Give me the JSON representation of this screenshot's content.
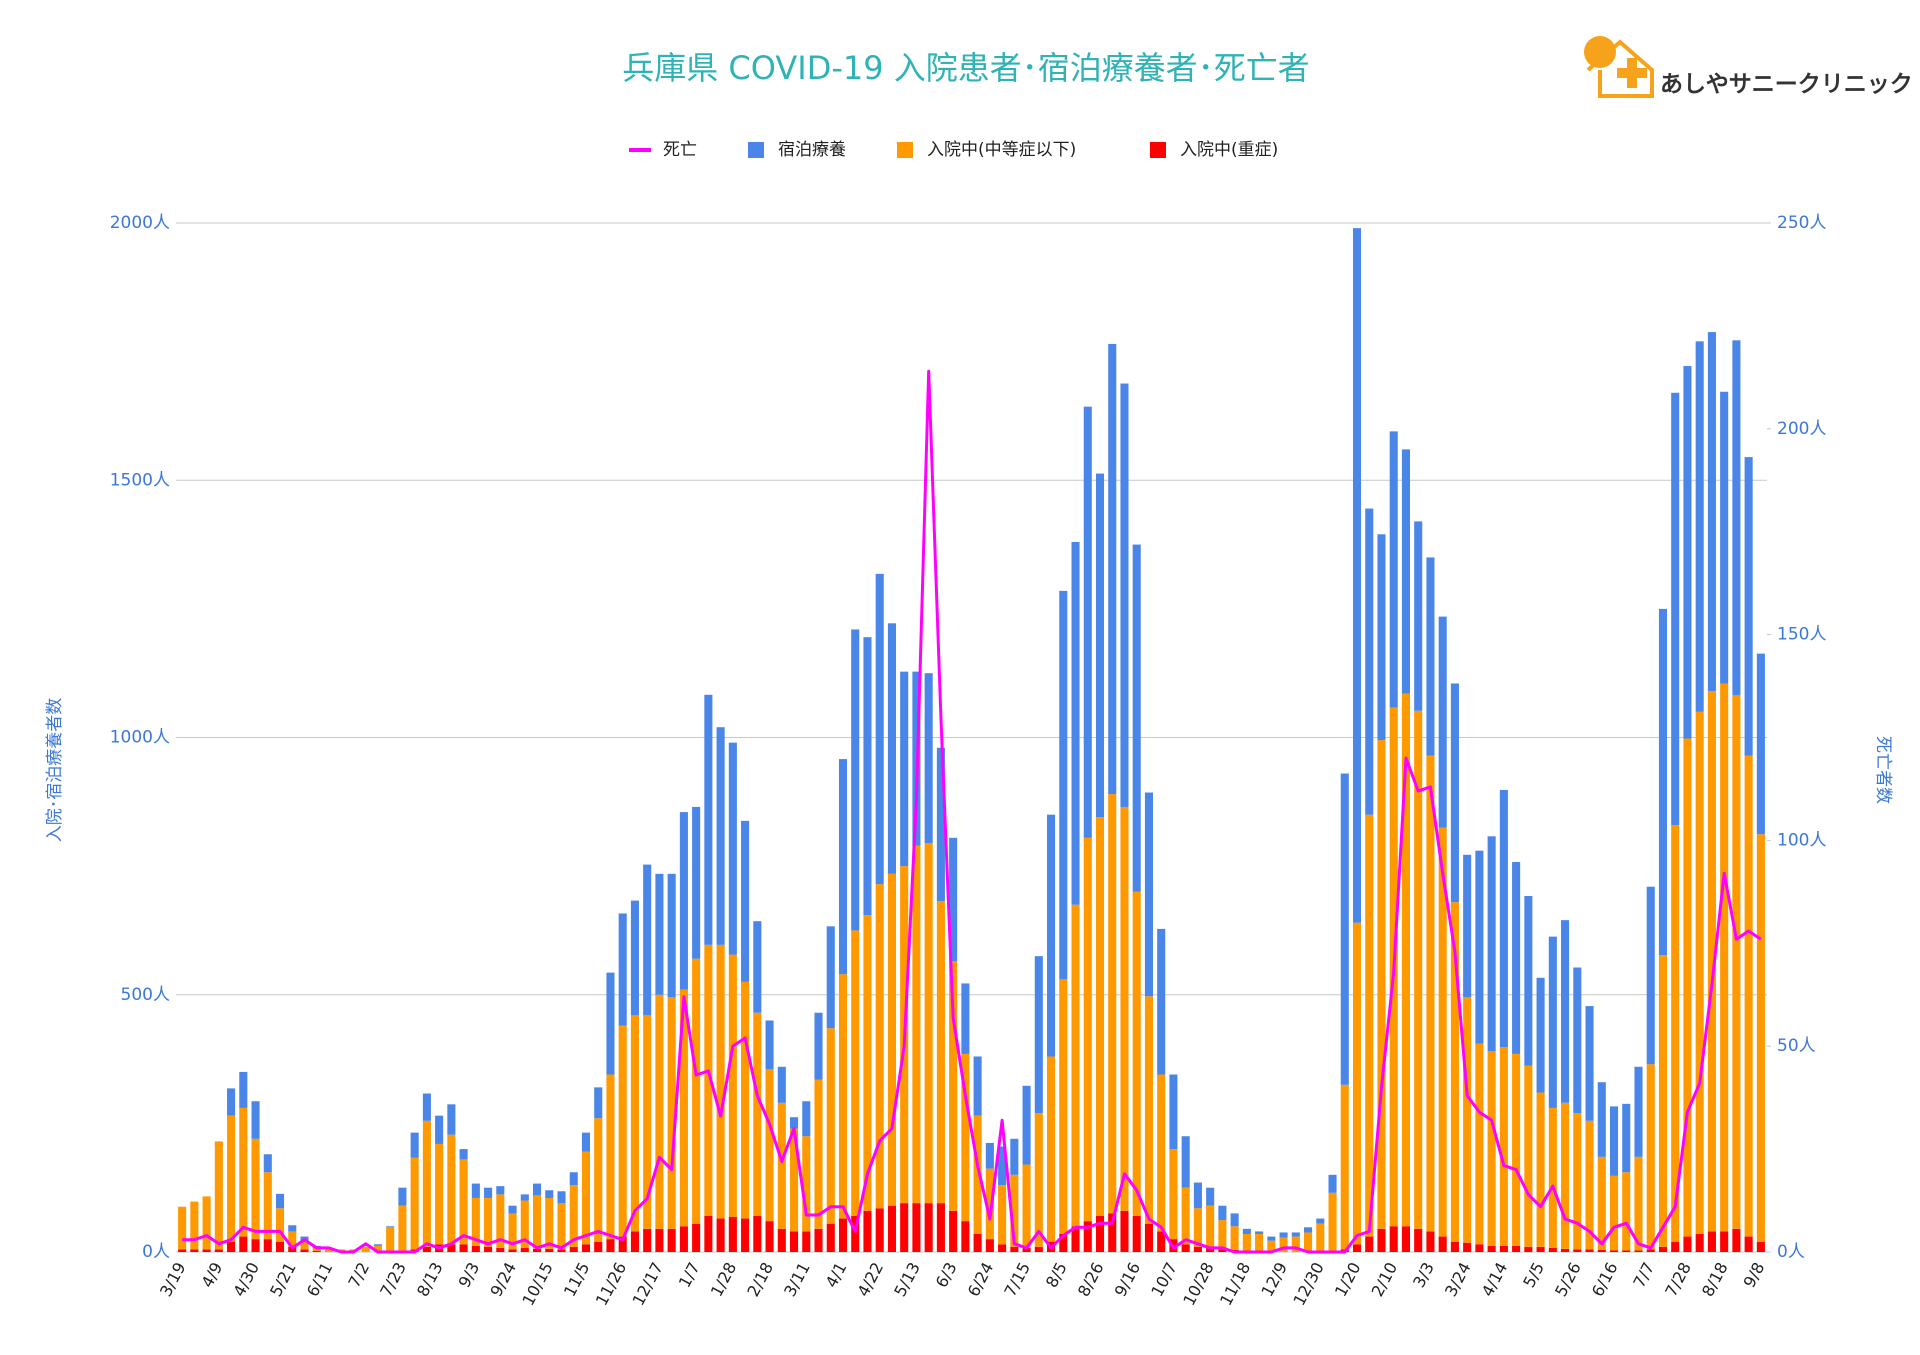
{
  "logo": "あしやサニークリニック",
  "chart_data": {
    "type": "bar",
    "stacked": true,
    "title": "兵庫県  COVID-19 入院患者･宿泊療養者･死亡者",
    "y_label": "入院･宿泊療養者数",
    "y2_label": "死亡者数",
    "categories": [
      "3/19",
      null,
      null,
      "4/9",
      null,
      null,
      "4/30",
      null,
      null,
      "5/21",
      null,
      null,
      "6/11",
      null,
      null,
      "7/2",
      null,
      null,
      "7/23",
      null,
      null,
      "8/13",
      null,
      null,
      "9/3",
      null,
      null,
      "9/24",
      null,
      null,
      "10/15",
      null,
      null,
      "11/5",
      null,
      null,
      "11/26",
      null,
      null,
      "12/17",
      null,
      null,
      "1/7",
      null,
      null,
      "1/28",
      null,
      null,
      "2/18",
      null,
      null,
      "3/11",
      null,
      null,
      "4/1",
      null,
      null,
      "4/22",
      null,
      null,
      "5/13",
      null,
      null,
      "6/3",
      null,
      null,
      "6/24",
      null,
      null,
      "7/15",
      null,
      null,
      "8/5",
      null,
      null,
      "8/26",
      null,
      null,
      "9/16",
      null,
      null,
      "10/7",
      null,
      null,
      "10/28",
      null,
      null,
      "11/18",
      null,
      null,
      "12/9",
      null,
      null,
      "12/30",
      null,
      null,
      "1/20",
      null,
      null,
      "2/10",
      null,
      null,
      "3/3",
      null,
      null,
      "3/24",
      null,
      null,
      "4/14",
      null,
      null,
      "5/5",
      null,
      null,
      "5/26",
      null,
      null,
      "6/16",
      null,
      null,
      "7/7",
      null,
      null,
      "7/28",
      null,
      null,
      "8/18",
      null,
      null,
      "9/8"
    ],
    "series": [
      {
        "name": "死亡",
        "color": "#ff00ff",
        "type": "line",
        "axis": "y2",
        "values": [
          3,
          3,
          4,
          2,
          3,
          6,
          5,
          5,
          5,
          1,
          3,
          1,
          1,
          0,
          0,
          2,
          0,
          0,
          0,
          0,
          2,
          1,
          2,
          4,
          3,
          2,
          3,
          2,
          3,
          1,
          2,
          1,
          3,
          4,
          5,
          4,
          3,
          10,
          13,
          23,
          20,
          62,
          43,
          44,
          33,
          50,
          52,
          38,
          31,
          22,
          30,
          9,
          9,
          11,
          11,
          5,
          19,
          27,
          30,
          50,
          110,
          214,
          130,
          57,
          38,
          21,
          8,
          32,
          2,
          1,
          5,
          1,
          4,
          6,
          6,
          7,
          7,
          19,
          15,
          8,
          6,
          1,
          3,
          2,
          1,
          1,
          0,
          0,
          0,
          0,
          1,
          1,
          0,
          0,
          0,
          0,
          4,
          5,
          40,
          68,
          120,
          112,
          113,
          92,
          73,
          38,
          34,
          32,
          21,
          20,
          14,
          11,
          16,
          8,
          7,
          5,
          2,
          6,
          7,
          2,
          1,
          6,
          11,
          34,
          41,
          65,
          92,
          76,
          78,
          76
        ]
      },
      {
        "name": "宿泊療養",
        "color": "#4a86e8",
        "values": [
          0,
          0,
          0,
          0,
          53,
          70,
          73,
          35,
          28,
          12,
          10,
          4,
          0,
          0,
          0,
          0,
          3,
          2,
          35,
          49,
          53,
          55,
          59,
          20,
          28,
          20,
          16,
          15,
          12,
          23,
          15,
          23,
          25,
          37,
          60,
          198,
          218,
          223,
          293,
          235,
          240,
          345,
          295,
          486,
          423,
          412,
          313,
          178,
          95,
          70,
          22,
          68,
          130,
          198,
          418,
          585,
          540,
          603,
          487,
          378,
          338,
          330,
          298,
          240,
          137,
          115,
          50,
          75,
          70,
          153,
          305,
          470,
          755,
          705,
          838,
          668,
          875,
          823,
          675,
          396,
          283,
          145,
          100,
          50,
          35,
          28,
          25,
          10,
          5,
          8,
          10,
          8,
          10,
          10,
          35,
          605,
          1350,
          595,
          400,
          537,
          475,
          368,
          385,
          410,
          425,
          277,
          375,
          418,
          500,
          373,
          330,
          223,
          333,
          355,
          283,
          223,
          145,
          135,
          133,
          175,
          345,
          673,
          840,
          724,
          720,
          698,
          567,
          690,
          580,
          351
        ]
      },
      {
        "name": "入院中(中等症以下)",
        "color": "#ff9900",
        "values": [
          83,
          93,
          103,
          210,
          245,
          250,
          195,
          130,
          65,
          30,
          15,
          6,
          8,
          5,
          5,
          10,
          12,
          48,
          90,
          178,
          245,
          195,
          213,
          165,
          93,
          95,
          104,
          70,
          92,
          104,
          99,
          90,
          120,
          180,
          240,
          320,
          410,
          420,
          415,
          455,
          450,
          460,
          515,
          527,
          532,
          510,
          460,
          395,
          295,
          245,
          200,
          185,
          290,
          380,
          475,
          555,
          575,
          630,
          645,
          655,
          695,
          700,
          587,
          485,
          325,
          230,
          137,
          115,
          140,
          162,
          260,
          360,
          495,
          625,
          745,
          775,
          815,
          785,
          630,
          442,
          305,
          175,
          110,
          75,
          82,
          57,
          46,
          33,
          35,
          22,
          28,
          30,
          38,
          55,
          112,
          320,
          625,
          820,
          950,
          1008,
          1035,
          1007,
          925,
          795,
          660,
          477,
          390,
          378,
          386,
          373,
          352,
          300,
          272,
          284,
          265,
          250,
          181,
          145,
          152,
          182,
          360,
          567,
          810,
          968,
          1015,
          1050,
          1065,
          1037,
          935,
          792
        ]
      },
      {
        "name": "入院中(重症)",
        "color": "#ff0000",
        "values": [
          5,
          5,
          5,
          5,
          20,
          30,
          25,
          25,
          20,
          10,
          5,
          2,
          0,
          0,
          0,
          0,
          0,
          0,
          0,
          5,
          10,
          15,
          15,
          15,
          12,
          10,
          8,
          5,
          8,
          6,
          6,
          5,
          10,
          15,
          20,
          25,
          30,
          40,
          45,
          45,
          45,
          50,
          55,
          70,
          65,
          68,
          65,
          70,
          60,
          45,
          40,
          40,
          45,
          55,
          65,
          70,
          80,
          85,
          90,
          95,
          95,
          95,
          95,
          80,
          60,
          35,
          25,
          15,
          10,
          8,
          10,
          20,
          35,
          50,
          60,
          70,
          75,
          80,
          70,
          55,
          40,
          25,
          15,
          10,
          8,
          5,
          4,
          2,
          0,
          0,
          0,
          0,
          0,
          0,
          3,
          5,
          15,
          30,
          45,
          50,
          50,
          45,
          40,
          30,
          20,
          18,
          15,
          12,
          12,
          12,
          10,
          10,
          8,
          6,
          5,
          5,
          4,
          3,
          3,
          3,
          5,
          10,
          20,
          30,
          35,
          40,
          40,
          45,
          30,
          20
        ]
      }
    ],
    "ylim": [
      0,
      2000
    ],
    "yticks": [
      {
        "value": 0,
        "label": "0人"
      },
      {
        "value": 500,
        "label": "500人"
      },
      {
        "value": 1000,
        "label": "1000人"
      },
      {
        "value": 1500,
        "label": "1500人"
      },
      {
        "value": 2000,
        "label": "2000人"
      }
    ],
    "y2lim": [
      0,
      250
    ],
    "y2ticks": [
      {
        "value": 0,
        "label": "0人"
      },
      {
        "value": 50,
        "label": "50人"
      },
      {
        "value": 100,
        "label": "100人"
      },
      {
        "value": 150,
        "label": "150人"
      },
      {
        "value": 200,
        "label": "200人"
      },
      {
        "value": 250,
        "label": "250人"
      }
    ],
    "grid": true
  }
}
